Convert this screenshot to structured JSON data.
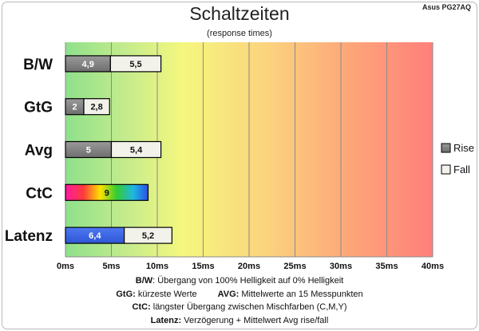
{
  "watermark": "Asus PG27AQ",
  "chart_data": {
    "type": "bar",
    "orientation": "horizontal",
    "stacked": true,
    "title": "Schaltzeiten",
    "subtitle": "(response times)",
    "categories": [
      "B/W",
      "GtG",
      "Avg",
      "CtC",
      "Latenz"
    ],
    "x_unit": "ms",
    "xlim": [
      0,
      40
    ],
    "x_ticks": [
      0,
      5,
      10,
      15,
      20,
      25,
      30,
      35,
      40
    ],
    "x_tick_labels": [
      "0ms",
      "5ms",
      "10ms",
      "15ms",
      "20ms",
      "25ms",
      "30ms",
      "35ms",
      "40ms"
    ],
    "grid": true,
    "background": "gradient green-yellow-red",
    "legend": {
      "position": "right",
      "entries": [
        "Rise",
        "Fall"
      ]
    },
    "bars": [
      {
        "category": "B/W",
        "segments": [
          {
            "series": "Rise",
            "value": 4.9,
            "label": "4,9",
            "style": "rise"
          },
          {
            "series": "Fall",
            "value": 5.5,
            "label": "5,5",
            "style": "fall"
          }
        ]
      },
      {
        "category": "GtG",
        "segments": [
          {
            "series": "Rise",
            "value": 2,
            "label": "2",
            "style": "rise"
          },
          {
            "series": "Fall",
            "value": 2.8,
            "label": "2,8",
            "style": "fall"
          }
        ]
      },
      {
        "category": "Avg",
        "segments": [
          {
            "series": "Rise",
            "value": 5,
            "label": "5",
            "style": "rise"
          },
          {
            "series": "Fall",
            "value": 5.4,
            "label": "5,4",
            "style": "fall"
          }
        ]
      },
      {
        "category": "CtC",
        "segments": [
          {
            "value": 9,
            "label": "9",
            "style": "ctc"
          }
        ]
      },
      {
        "category": "Latenz",
        "segments": [
          {
            "value": 6.4,
            "label": "6,4",
            "style": "latency"
          },
          {
            "value": 5.2,
            "label": "5,2",
            "style": "fall"
          }
        ]
      }
    ],
    "colors": {
      "rise": "#7f7f7f",
      "fall": "#f2f2ea",
      "latency": "#3a66e8"
    }
  },
  "notes": {
    "bw_key": "B/W",
    "bw_text": ":  Übergang von 100% Helligkeit auf 0% Helligkeit",
    "gtg_key": "GtG:",
    "gtg_text": " kürzeste  Werte",
    "avg_key": "AVG:",
    "avg_text": " Mittelwerte  an 15 Messpunkten",
    "ctc_key": "CtC:",
    "ctc_text": " längster Übergang  zwischen Mischfarben  (C,M,Y)",
    "lat_key": "Latenz:",
    "lat_text": " Verzögerung  + Mittelwert Avg rise/fall"
  }
}
